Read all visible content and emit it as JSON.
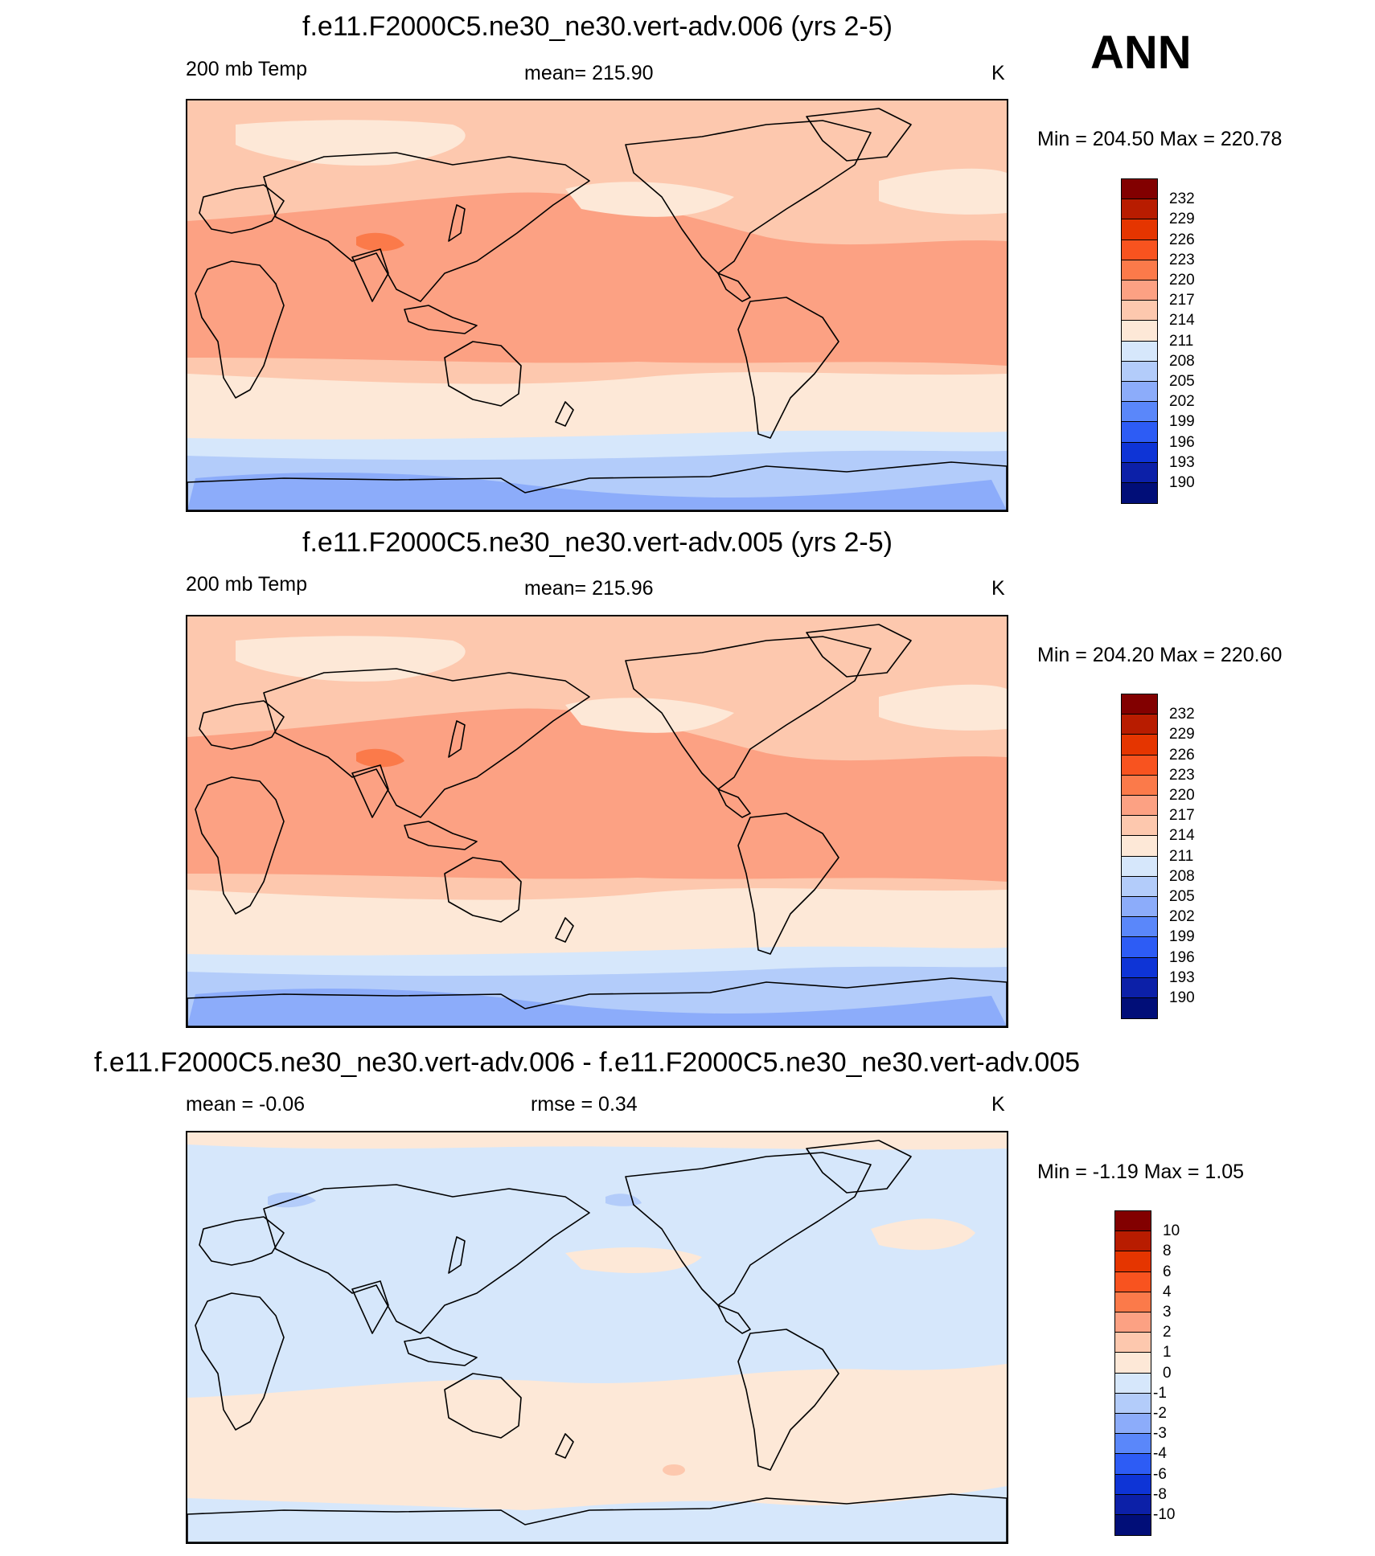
{
  "season": "ANN",
  "panels": [
    {
      "title": "f.e11.F2000C5.ne30_ne30.vert-adv.006 (yrs 2-5)",
      "left_label": "200 mb Temp",
      "center_label": "mean= 215.90",
      "units": "K",
      "minmax": "Min = 204.50 Max = 220.78",
      "colorbar": {
        "labels": [
          "232",
          "229",
          "226",
          "223",
          "220",
          "217",
          "214",
          "211",
          "208",
          "205",
          "202",
          "199",
          "196",
          "193",
          "190"
        ],
        "colors": [
          "#820000",
          "#b81c00",
          "#e53500",
          "#f8531f",
          "#fb7a4a",
          "#fca183",
          "#fdc8ae",
          "#fde8d7",
          "#d6e7fb",
          "#b3ccfa",
          "#8cacfa",
          "#5a87fa",
          "#2d5cf5",
          "#0e34d6",
          "#0c20a8",
          "#010e78"
        ]
      },
      "map_colors": {
        "south_polar": "#8cacfa",
        "south_mid": "#b3ccfa",
        "south_light": "#d6e7fb",
        "south_cream": "#fde8d7",
        "peach": "#fdc8ae",
        "salmon": "#fca183",
        "orange": "#fb7a4a",
        "north_cream": "#fde8d7"
      }
    },
    {
      "title": "f.e11.F2000C5.ne30_ne30.vert-adv.005 (yrs 2-5)",
      "left_label": "200 mb Temp",
      "center_label": "mean= 215.96",
      "units": "K",
      "minmax": "Min = 204.20 Max = 220.60",
      "colorbar": {
        "labels": [
          "232",
          "229",
          "226",
          "223",
          "220",
          "217",
          "214",
          "211",
          "208",
          "205",
          "202",
          "199",
          "196",
          "193",
          "190"
        ],
        "colors": [
          "#820000",
          "#b81c00",
          "#e53500",
          "#f8531f",
          "#fb7a4a",
          "#fca183",
          "#fdc8ae",
          "#fde8d7",
          "#d6e7fb",
          "#b3ccfa",
          "#8cacfa",
          "#5a87fa",
          "#2d5cf5",
          "#0e34d6",
          "#0c20a8",
          "#010e78"
        ]
      },
      "map_colors": {
        "south_polar": "#8cacfa",
        "south_mid": "#b3ccfa",
        "south_light": "#d6e7fb",
        "south_cream": "#fde8d7",
        "peach": "#fdc8ae",
        "salmon": "#fca183",
        "orange": "#fb7a4a",
        "north_cream": "#fde8d7"
      }
    },
    {
      "title": "f.e11.F2000C5.ne30_ne30.vert-adv.006 - f.e11.F2000C5.ne30_ne30.vert-adv.005",
      "left_label": "mean =  -0.06",
      "center_label": "rmse =   0.34",
      "units": "K",
      "minmax": "Min =  -1.19 Max =   1.05",
      "colorbar": {
        "labels": [
          "10",
          "8",
          "6",
          "4",
          "3",
          "2",
          "1",
          "0",
          "-1",
          "-2",
          "-3",
          "-4",
          "-6",
          "-8",
          "-10"
        ],
        "colors": [
          "#820000",
          "#b81c00",
          "#e53500",
          "#f8531f",
          "#fb7a4a",
          "#fca183",
          "#fdc8ae",
          "#fde8d7",
          "#d6e7fb",
          "#b3ccfa",
          "#8cacfa",
          "#5a87fa",
          "#2d5cf5",
          "#0e34d6",
          "#0c20a8",
          "#010e78"
        ]
      },
      "map_colors": {
        "background": "#d6e7fb",
        "cream": "#fde8d7",
        "light_blue": "#b3ccfa",
        "peach": "#fdc8ae"
      }
    }
  ],
  "chart_data": {
    "type": "heatmap",
    "description_variable": "200 mb Temp",
    "units": "K",
    "projection": "cylindrical equidistant, Pacific-centered",
    "panels": [
      {
        "case": "f.e11.F2000C5.ne30_ne30.vert-adv.006 (yrs 2-5)",
        "mean": 215.9,
        "min": 204.5,
        "max": 220.78,
        "contour_levels": [
          190,
          193,
          196,
          199,
          202,
          205,
          208,
          211,
          214,
          217,
          220,
          223,
          226,
          229,
          232
        ]
      },
      {
        "case": "f.e11.F2000C5.ne30_ne30.vert-adv.005 (yrs 2-5)",
        "mean": 215.96,
        "min": 204.2,
        "max": 220.6,
        "contour_levels": [
          190,
          193,
          196,
          199,
          202,
          205,
          208,
          211,
          214,
          217,
          220,
          223,
          226,
          229,
          232
        ]
      },
      {
        "case": "difference (006 - 005)",
        "mean": -0.06,
        "rmse": 0.34,
        "min": -1.19,
        "max": 1.05,
        "contour_levels": [
          -10,
          -8,
          -6,
          -4,
          -3,
          -2,
          -1,
          0,
          1,
          2,
          3,
          4,
          6,
          8,
          10
        ]
      }
    ]
  }
}
